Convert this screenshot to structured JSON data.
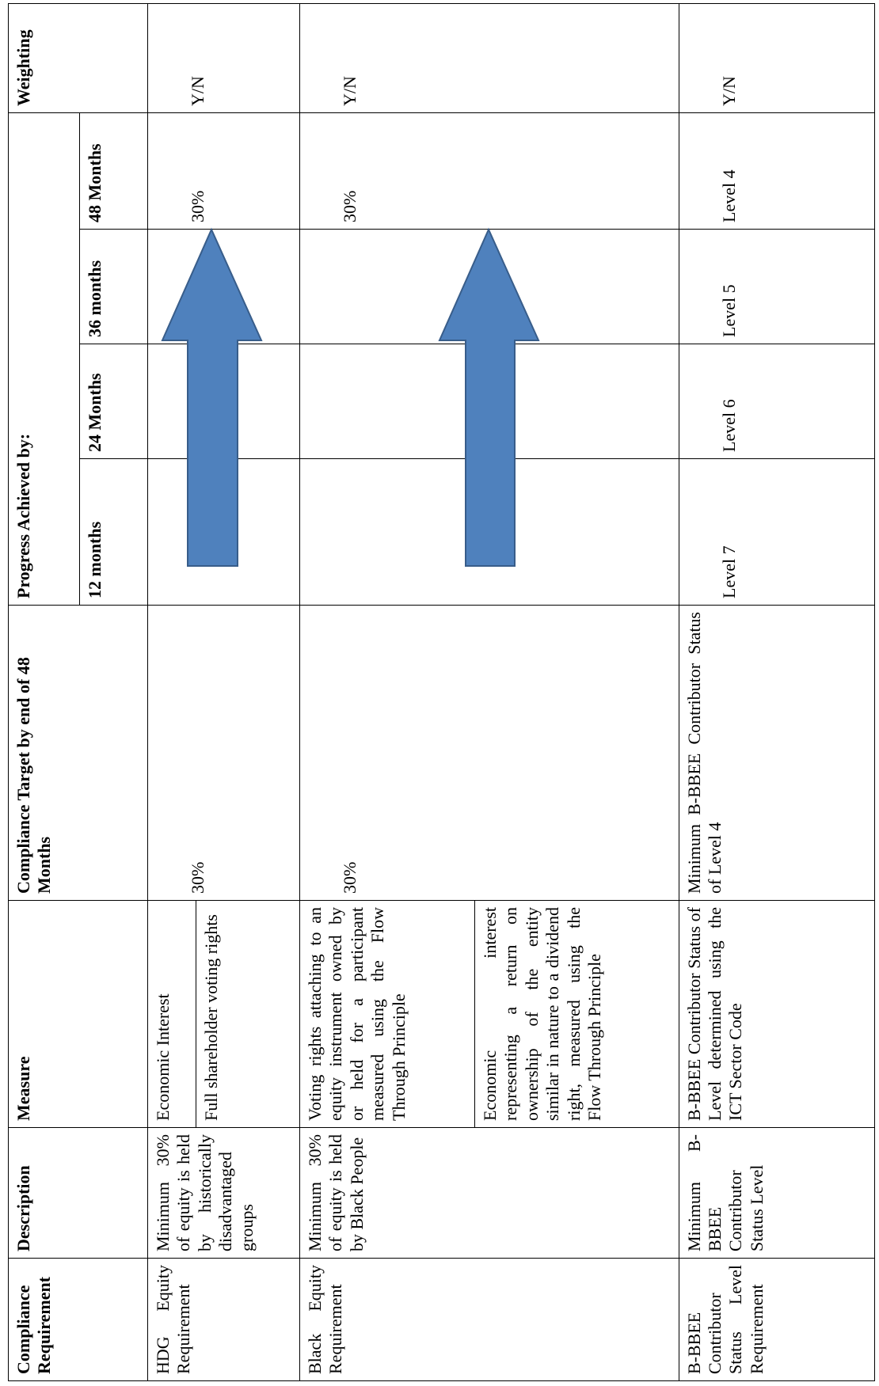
{
  "table": {
    "header": {
      "compliance_requirement": "Compliance Requirement",
      "description": "Description",
      "measure": "Measure",
      "target": "Compliance Target by end of 48 Months",
      "progress": "Progress Achieved by:",
      "periods": [
        "12 months",
        "24 Months",
        "36 months",
        "48 Months"
      ],
      "weighting": "Weighting"
    },
    "rows": [
      {
        "requirement": "HDG Equity Requirement",
        "description": "Minimum 30% of equity is held by historically disadvantaged groups",
        "measures": [
          "Economic Interest",
          "Full shareholder voting rights"
        ],
        "target": "30%",
        "progress": [
          null,
          null,
          null,
          "30%"
        ],
        "weighting": "Y/N"
      },
      {
        "requirement": "Black Equity Requirement",
        "description": "Minimum 30% of equity is held by Black People",
        "measures": [
          "Voting rights attaching to an equity instrument owned by or held for a participant measured using the Flow Through Principle",
          "Economic interest representing a return on ownership of the entity similar in nature to a dividend right, measured using the Flow Through Principle"
        ],
        "target": "30%",
        "progress": [
          null,
          null,
          null,
          "30%"
        ],
        "weighting": "Y/N"
      },
      {
        "requirement": "B-BBEE Contributor Status Level Requirement",
        "description": "Minimum B-BBEE Contributor Status Level",
        "measures": [
          "B-BBEE Contributor Status of Level determined using the ICT Sector Code"
        ],
        "target": "Minimum B-BBEE Contributor Status of Level 4",
        "progress": [
          "Level 7",
          "Level 6",
          "Level 5",
          "Level 4"
        ],
        "weighting": "Y/N"
      }
    ]
  }
}
